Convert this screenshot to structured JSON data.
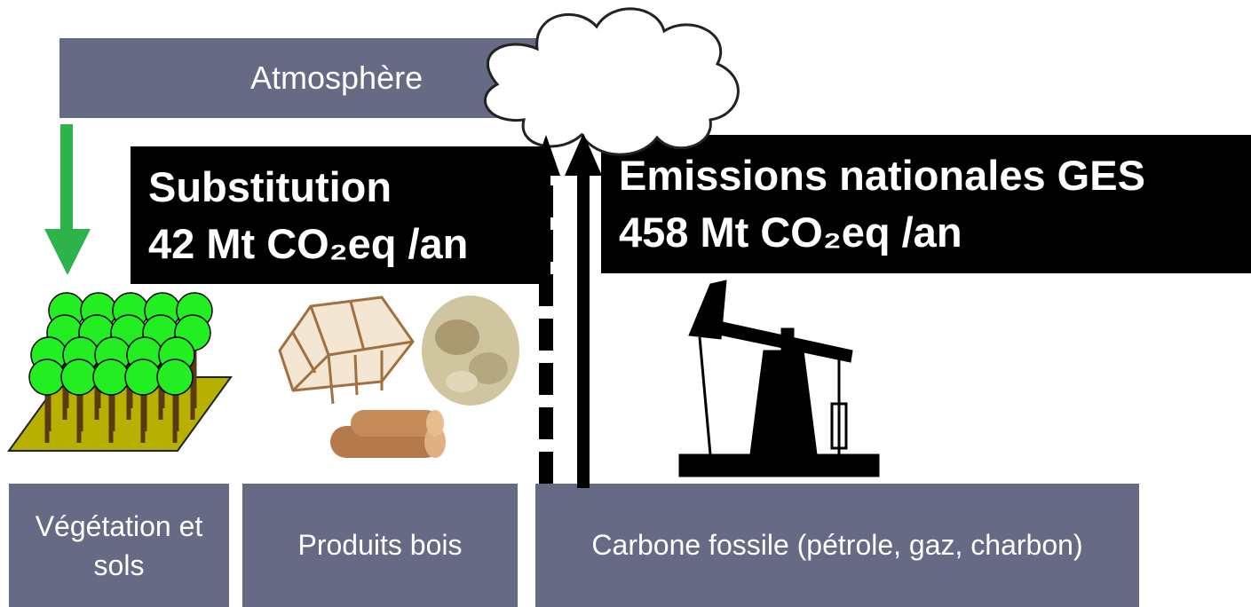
{
  "atmosphere": {
    "label": "Atmosphère"
  },
  "substitution": {
    "title": "Substitution",
    "value": "42 Mt CO₂eq /an"
  },
  "emissions": {
    "title": "Emissions nationales GES",
    "value": "458 Mt CO₂eq /an"
  },
  "pools": [
    {
      "label": "Végétation et sols"
    },
    {
      "label": "Produits bois"
    },
    {
      "label": "Carbone fossile (pétrole, gaz, charbon)"
    }
  ]
}
